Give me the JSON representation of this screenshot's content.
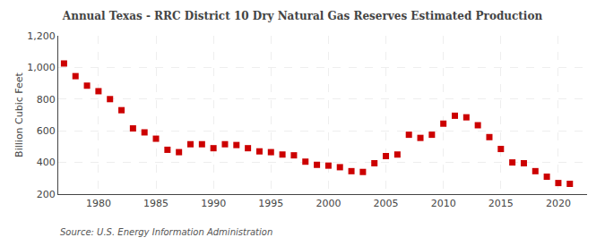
{
  "chart_data": {
    "type": "scatter",
    "title": "Annual Texas - RRC District 10 Dry Natural Gas Reserves Estimated Production",
    "ylabel": "Billion Cubic Feet",
    "source": "Source: U.S. Energy Information Administration",
    "x": [
      1977,
      1978,
      1979,
      1980,
      1981,
      1982,
      1983,
      1984,
      1985,
      1986,
      1987,
      1988,
      1989,
      1990,
      1991,
      1992,
      1993,
      1994,
      1995,
      1996,
      1997,
      1998,
      1999,
      2000,
      2001,
      2002,
      2003,
      2004,
      2005,
      2006,
      2007,
      2008,
      2009,
      2010,
      2011,
      2012,
      2013,
      2014,
      2015,
      2016,
      2017,
      2018,
      2019,
      2020,
      2021
    ],
    "values": [
      1025,
      945,
      885,
      850,
      800,
      730,
      615,
      590,
      550,
      480,
      465,
      515,
      515,
      490,
      515,
      510,
      490,
      470,
      465,
      450,
      445,
      405,
      385,
      380,
      370,
      345,
      340,
      395,
      440,
      450,
      575,
      555,
      575,
      645,
      695,
      685,
      635,
      560,
      485,
      400,
      395,
      345,
      310,
      270,
      265
    ],
    "color": "#cc0000",
    "marker": "square",
    "xlim": [
      1976.5,
      2022.5
    ],
    "xticks": [
      1980,
      1985,
      1990,
      1995,
      2000,
      2005,
      2010,
      2015,
      2020
    ],
    "ylim": [
      200,
      1200
    ],
    "yticks": [
      200,
      400,
      600,
      800,
      {
        "value": 1000,
        "label": "1,000"
      },
      {
        "value": 1200,
        "label": "1,200"
      }
    ],
    "grid": true
  }
}
